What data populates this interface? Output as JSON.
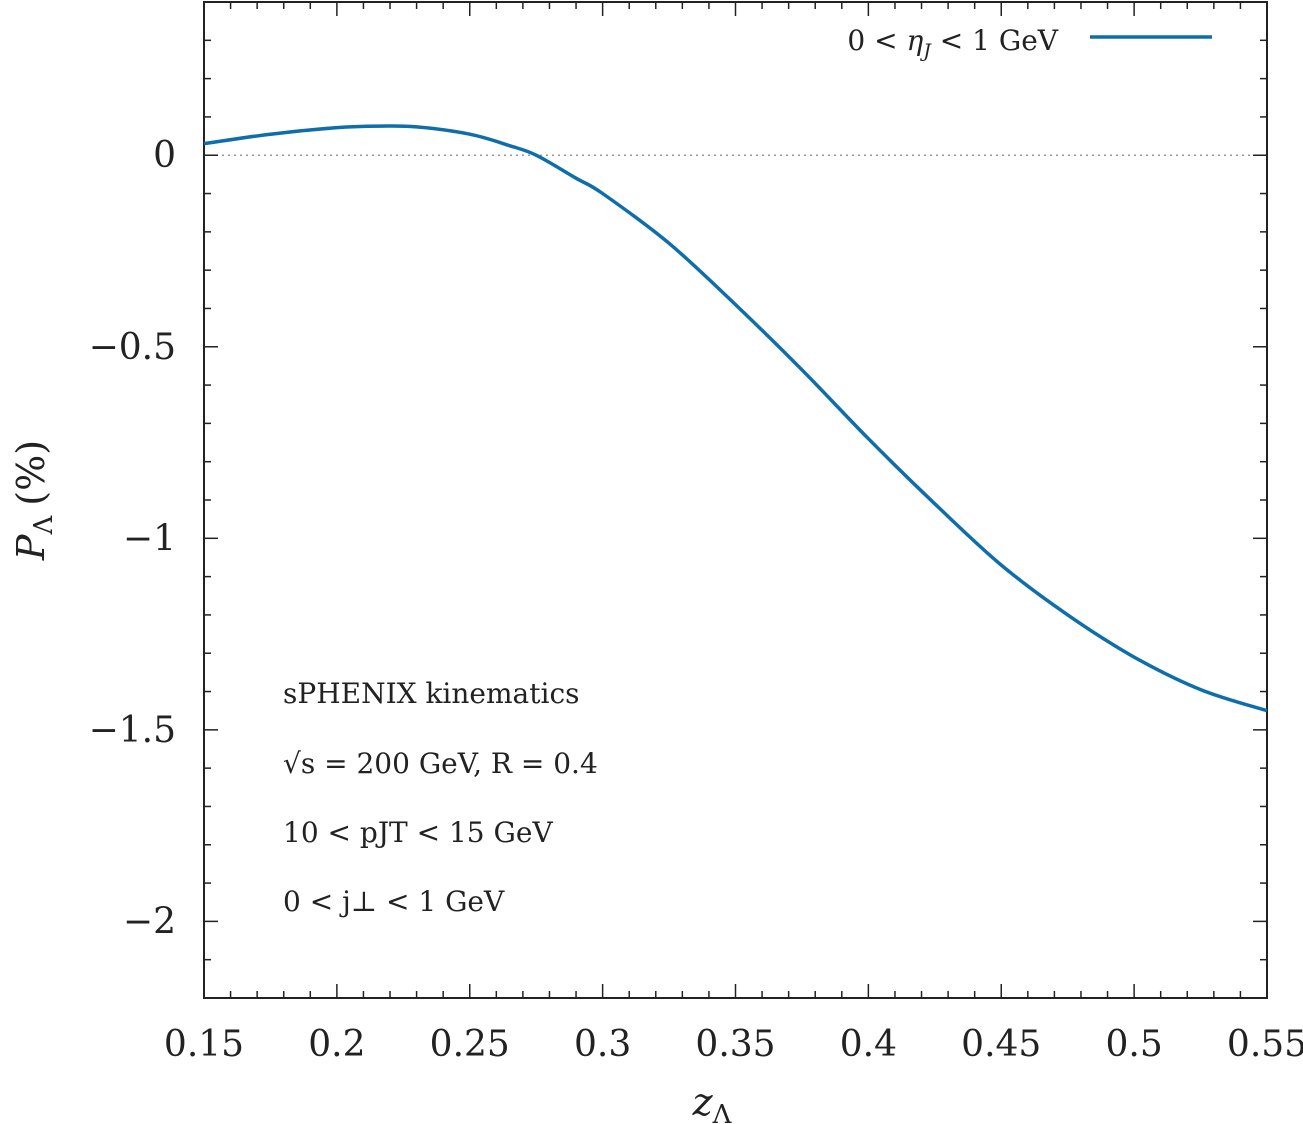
{
  "chart_data": {
    "type": "line",
    "xlabel": "z",
    "xlabel_sub": "Λ",
    "ylabel": "P",
    "ylabel_sub": "Λ",
    "ylabel_unit": "(%)",
    "xlim": [
      0.15,
      0.55
    ],
    "ylim": [
      -2.2,
      0.4
    ],
    "x_ticks": [
      0.15,
      0.2,
      0.25,
      0.3,
      0.35,
      0.4,
      0.45,
      0.5,
      0.55
    ],
    "x_tick_labels": [
      "0.15",
      "0.2",
      "0.25",
      "0.3",
      "0.35",
      "0.4",
      "0.45",
      "0.5",
      "0.55"
    ],
    "y_ticks": [
      0,
      -0.5,
      -1,
      -1.5,
      -2
    ],
    "y_tick_labels": [
      "0",
      "−0.5",
      "−1",
      "−1.5",
      "−2"
    ],
    "reference_line": {
      "y": 0,
      "style": "dotted"
    },
    "legend": {
      "placement": "top-right"
    },
    "series": [
      {
        "name": "0 < ηJ < 1 GeV",
        "name_parts": {
          "pre": "0 < ",
          "sym": "η",
          "sub": "J",
          "post": " < 1 GeV"
        },
        "color": "#0e6eaa",
        "x": [
          0.15,
          0.175,
          0.2,
          0.216,
          0.23,
          0.25,
          0.265,
          0.275,
          0.29,
          0.3,
          0.325,
          0.35,
          0.375,
          0.4,
          0.425,
          0.45,
          0.475,
          0.5,
          0.525,
          0.55
        ],
        "y": [
          0.03,
          0.055,
          0.072,
          0.076,
          0.074,
          0.055,
          0.025,
          0.0,
          -0.06,
          -0.1,
          -0.23,
          -0.39,
          -0.56,
          -0.74,
          -0.91,
          -1.07,
          -1.2,
          -1.31,
          -1.395,
          -1.45
        ]
      }
    ],
    "annotations": [
      {
        "text": "sPHENIX kinematics"
      },
      {
        "text": "√s = 200 GeV,  R = 0.4"
      },
      {
        "text": "10 < pJT < 15 GeV"
      },
      {
        "text": "0 < j⊥ < 1 GeV"
      }
    ]
  }
}
